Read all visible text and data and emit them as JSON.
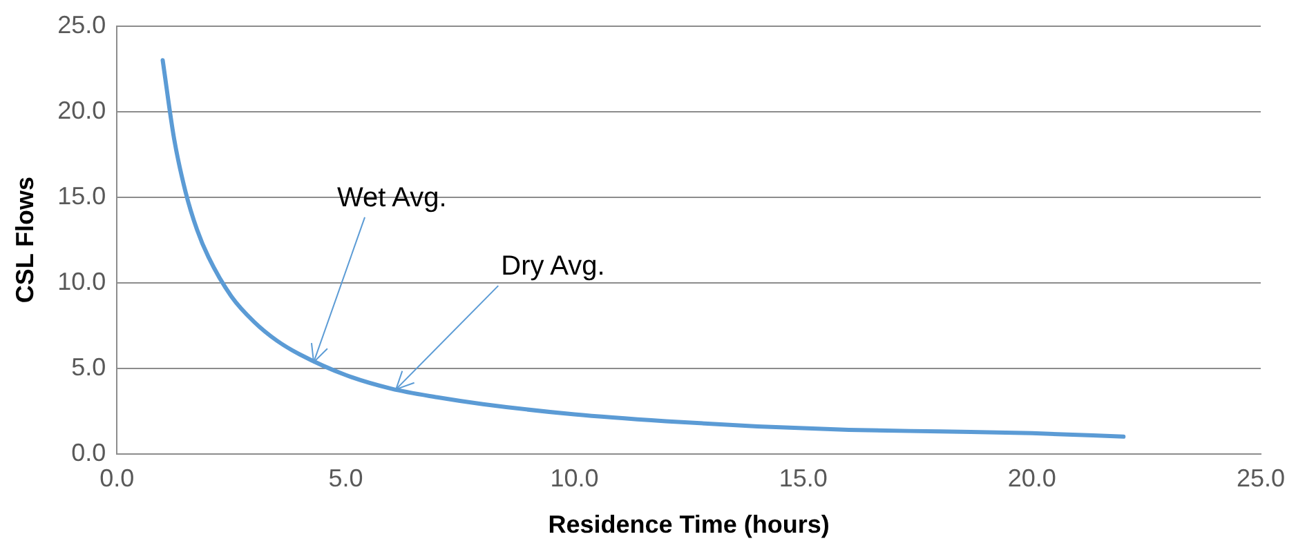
{
  "chart_data": {
    "type": "line",
    "xlabel": "Residence Time (hours)",
    "ylabel": "CSL Flows",
    "x": [
      1,
      1.25,
      1.5,
      1.75,
      2,
      2.5,
      3,
      3.5,
      4,
      5,
      6,
      7,
      8,
      10,
      12,
      14,
      16,
      18,
      20,
      22
    ],
    "series": [
      {
        "color": "#5b9bd5",
        "values": [
          23,
          18.4,
          15.3,
          13.1,
          11.5,
          9.2,
          7.7,
          6.6,
          5.8,
          4.6,
          3.8,
          3.3,
          2.9,
          2.3,
          1.9,
          1.6,
          1.4,
          1.3,
          1.2,
          1.0
        ]
      }
    ],
    "xlim": [
      0,
      25
    ],
    "xticks": [
      {
        "value": 0,
        "label": "0.0"
      },
      {
        "value": 5,
        "label": "5.0"
      },
      {
        "value": 10,
        "label": "10.0"
      },
      {
        "value": 15,
        "label": "15.0"
      },
      {
        "value": 20,
        "label": "20.0"
      },
      {
        "value": 25,
        "label": "25.0"
      }
    ],
    "ylim": [
      0,
      25
    ],
    "yticks": [
      {
        "value": 0,
        "label": "0.0"
      },
      {
        "value": 5,
        "label": "5.0"
      },
      {
        "value": 10,
        "label": "10.0"
      },
      {
        "value": 15,
        "label": "15.0"
      },
      {
        "value": 20,
        "label": "20.0"
      },
      {
        "value": 25,
        "label": "25.0"
      }
    ],
    "grid": "y",
    "legend": false,
    "marker": "none",
    "line_style": "solid",
    "annotations": [
      {
        "text": "Wet Avg.",
        "x": 4.3,
        "y": 5.35
      },
      {
        "text": "Dry Avg.",
        "x": 6.1,
        "y": 3.77
      }
    ]
  }
}
